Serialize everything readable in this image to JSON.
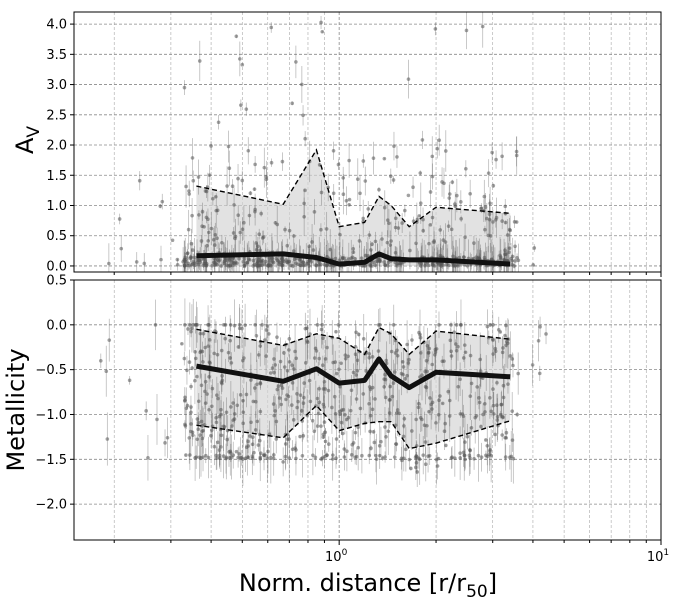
{
  "chart_data": [
    {
      "type": "scatter",
      "xlabel": "Norm. distance [r/r$_{50}$]",
      "ylabel": "A$_V$",
      "xscale": "log",
      "xlim": [
        0.15,
        10
      ],
      "ylim": [
        -0.1,
        4.2
      ],
      "grid": "on (major and minor, dashed)",
      "x_ticks": [
        {
          "value": 1,
          "label": "10",
          "exp": "0"
        },
        {
          "value": 10,
          "label": "10",
          "exp": "1"
        }
      ],
      "y_ticks": [
        {
          "value": 0.0,
          "label": "0.0"
        },
        {
          "value": 0.5,
          "label": "0.5"
        },
        {
          "value": 1.0,
          "label": "1.0"
        },
        {
          "value": 1.5,
          "label": "1.5"
        },
        {
          "value": 2.0,
          "label": "2.0"
        },
        {
          "value": 2.5,
          "label": "2.5"
        },
        {
          "value": 3.0,
          "label": "3.0"
        },
        {
          "value": 3.5,
          "label": "3.5"
        },
        {
          "value": 4.0,
          "label": "4.0"
        }
      ],
      "median": {
        "x": [
          0.36,
          0.67,
          0.85,
          1.0,
          1.2,
          1.33,
          1.45,
          1.65,
          2.0,
          3.4
        ],
        "y": [
          0.17,
          0.2,
          0.14,
          0.03,
          0.06,
          0.2,
          0.12,
          0.1,
          0.1,
          0.03
        ]
      },
      "upper_bound": {
        "x": [
          0.36,
          0.67,
          0.85,
          1.0,
          1.2,
          1.33,
          1.45,
          1.65,
          2.0,
          3.4
        ],
        "y": [
          1.32,
          1.02,
          1.92,
          0.65,
          0.72,
          1.15,
          1.0,
          0.65,
          0.97,
          0.87
        ]
      },
      "lower_bound": {
        "x": [
          0.36,
          3.4
        ],
        "y": [
          0.0,
          0.0
        ]
      }
    },
    {
      "type": "scatter",
      "xlabel": "Norm. distance [r/r$_{50}$]",
      "ylabel": "Metallicity",
      "xscale": "log",
      "xlim": [
        0.15,
        10
      ],
      "ylim": [
        -2.4,
        0.5
      ],
      "grid": "on (major and minor, dashed)",
      "x_ticks": [
        {
          "value": 1,
          "label": "10",
          "exp": "0"
        },
        {
          "value": 10,
          "label": "10",
          "exp": "1"
        }
      ],
      "y_ticks": [
        {
          "value": 0.5,
          "label": "0.5"
        },
        {
          "value": 0.0,
          "label": "0.0"
        },
        {
          "value": -0.5,
          "label": "−0.5"
        },
        {
          "value": -1.0,
          "label": "−1.0"
        },
        {
          "value": -1.5,
          "label": "−1.5"
        },
        {
          "value": -2.0,
          "label": "−2.0"
        }
      ],
      "median": {
        "x": [
          0.36,
          0.67,
          0.85,
          1.0,
          1.2,
          1.33,
          1.45,
          1.65,
          2.0,
          3.4
        ],
        "y": [
          -0.46,
          -0.63,
          -0.49,
          -0.65,
          -0.62,
          -0.38,
          -0.57,
          -0.7,
          -0.53,
          -0.58
        ]
      },
      "upper_bound": {
        "x": [
          0.36,
          0.67,
          0.85,
          1.0,
          1.2,
          1.33,
          1.45,
          1.65,
          2.0,
          3.4
        ],
        "y": [
          -0.05,
          -0.23,
          -0.1,
          -0.15,
          -0.33,
          -0.03,
          -0.1,
          -0.33,
          -0.07,
          -0.16
        ]
      },
      "lower_bound": {
        "x": [
          0.36,
          0.67,
          0.85,
          1.0,
          1.2,
          1.33,
          1.45,
          1.65,
          2.0,
          3.4
        ],
        "y": [
          -1.12,
          -1.26,
          -0.9,
          -1.18,
          -1.1,
          -1.08,
          -1.08,
          -1.38,
          -1.32,
          -1.07
        ]
      }
    }
  ]
}
